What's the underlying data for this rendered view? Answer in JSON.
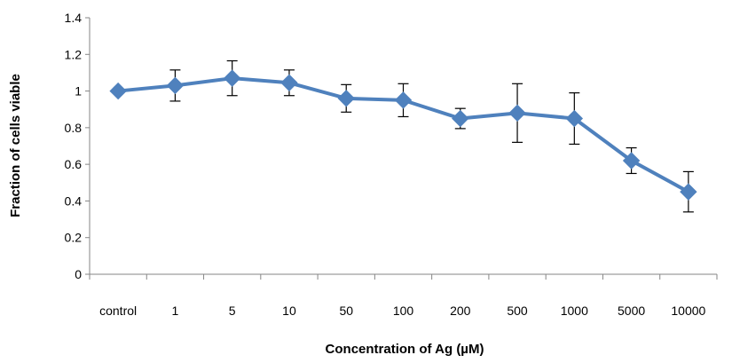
{
  "chart_data": {
    "type": "line",
    "title": "",
    "xlabel": "Concentration of Ag (µM)",
    "ylabel": "Fraction of cells viable",
    "categories": [
      "control",
      "1",
      "5",
      "10",
      "50",
      "100",
      "200",
      "500",
      "1000",
      "5000",
      "10000"
    ],
    "series": [
      {
        "values": [
          1.0,
          1.03,
          1.07,
          1.045,
          0.96,
          0.95,
          0.85,
          0.88,
          0.85,
          0.62,
          0.45
        ],
        "error": [
          0.0,
          0.085,
          0.095,
          0.07,
          0.075,
          0.09,
          0.055,
          0.16,
          0.14,
          0.07,
          0.11
        ]
      }
    ],
    "ylim": [
      0,
      1.4
    ],
    "yticks": [
      "0",
      "0.2",
      "0.4",
      "0.6",
      "0.8",
      "1",
      "1.2",
      "1.4"
    ],
    "grid": false,
    "legend": "none",
    "colors": {
      "line": "#4f81bd",
      "marker": "#4f81bd",
      "error_bar": "#000000",
      "axis": "#868686"
    }
  }
}
